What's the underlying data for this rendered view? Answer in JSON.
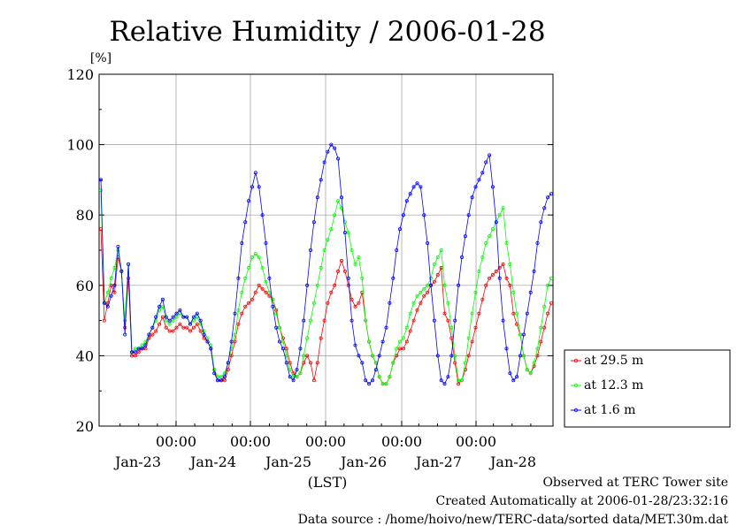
{
  "chart_data": {
    "type": "line",
    "title": "Relative Humidity / 2006-01-28",
    "ylabel": "[%]",
    "xlabel": "(LST)",
    "ylim": [
      20,
      120
    ],
    "yticks": [
      20,
      40,
      60,
      80,
      100,
      120
    ],
    "xlim_days": [
      "2006-01-22 13:00",
      "2006-01-28 23:00"
    ],
    "x_ticks": [
      "00:00",
      "00:00",
      "00:00",
      "00:00",
      "00:00"
    ],
    "x_day_labels": [
      "Jan-23",
      "Jan-24",
      "Jan-25",
      "Jan-26",
      "Jan-27",
      "Jan-28"
    ],
    "grid": true,
    "legend_position": "right",
    "series": [
      {
        "name": "at 29.5 m",
        "color": "#ff0000",
        "values": [
          76,
          50,
          55,
          60,
          58,
          68,
          64,
          48,
          62,
          40,
          40,
          41,
          42,
          42,
          45,
          46,
          47,
          49,
          51,
          48,
          47,
          47,
          48,
          49,
          48,
          48,
          47,
          48,
          49,
          47,
          45,
          44,
          42,
          36,
          33,
          33,
          33,
          36,
          40,
          44,
          49,
          52,
          54,
          55,
          56,
          58,
          60,
          59,
          58,
          57,
          56,
          53,
          48,
          45,
          42,
          38,
          35,
          34,
          35,
          38,
          40,
          38,
          33,
          38,
          45,
          50,
          55,
          58,
          60,
          64,
          67,
          64,
          60,
          56,
          54,
          55,
          58,
          50,
          44,
          40,
          38,
          34,
          32,
          32,
          34,
          38,
          40,
          42,
          42,
          44,
          47,
          50,
          53,
          55,
          57,
          58,
          60,
          61,
          63,
          65,
          52,
          50,
          45,
          38,
          32,
          33,
          36,
          40,
          44,
          48,
          52,
          56,
          60,
          62,
          63,
          64,
          65,
          66,
          62,
          60,
          52,
          49,
          46,
          40,
          36,
          35,
          37,
          40,
          44,
          48,
          52,
          55
        ]
      },
      {
        "name": "at 12.3 m",
        "color": "#00ff00",
        "values": [
          87,
          55,
          58,
          62,
          65,
          70,
          64,
          50,
          66,
          41,
          42,
          42,
          43,
          44,
          46,
          48,
          50,
          53,
          54,
          50,
          49,
          50,
          51,
          52,
          51,
          51,
          49,
          50,
          51,
          49,
          47,
          45,
          43,
          36,
          34,
          34,
          35,
          38,
          42,
          46,
          53,
          58,
          62,
          65,
          68,
          69,
          68,
          65,
          61,
          58,
          56,
          52,
          48,
          44,
          40,
          36,
          34,
          34,
          35,
          40,
          45,
          50,
          55,
          60,
          65,
          70,
          73,
          76,
          80,
          84,
          82,
          78,
          75,
          70,
          66,
          68,
          62,
          50,
          44,
          40,
          38,
          34,
          32,
          32,
          34,
          38,
          42,
          44,
          45,
          48,
          52,
          55,
          57,
          58,
          59,
          60,
          62,
          66,
          68,
          70,
          60,
          55,
          48,
          40,
          33,
          33,
          38,
          45,
          52,
          58,
          64,
          68,
          72,
          74,
          76,
          78,
          80,
          82,
          72,
          66,
          58,
          52,
          46,
          40,
          36,
          35,
          38,
          42,
          48,
          54,
          60,
          62
        ]
      },
      {
        "name": "at 1.6 m",
        "color": "#0000ff",
        "values": [
          90,
          55,
          54,
          57,
          60,
          71,
          64,
          46,
          66,
          41,
          41,
          42,
          42,
          43,
          46,
          48,
          51,
          54,
          56,
          51,
          50,
          51,
          52,
          53,
          51,
          51,
          49,
          51,
          52,
          50,
          46,
          44,
          42,
          35,
          33,
          33,
          34,
          38,
          44,
          52,
          62,
          72,
          78,
          84,
          88,
          92,
          88,
          80,
          72,
          62,
          54,
          48,
          44,
          42,
          38,
          34,
          33,
          36,
          42,
          50,
          60,
          70,
          78,
          85,
          90,
          95,
          98,
          100,
          99,
          96,
          85,
          75,
          62,
          50,
          43,
          40,
          38,
          33,
          32,
          33,
          36,
          40,
          44,
          48,
          55,
          62,
          70,
          76,
          80,
          84,
          86,
          88,
          89,
          88,
          80,
          72,
          60,
          50,
          40,
          33,
          32,
          34,
          40,
          50,
          60,
          68,
          74,
          80,
          85,
          88,
          90,
          92,
          95,
          97,
          88,
          78,
          62,
          50,
          42,
          35,
          33,
          34,
          40,
          46,
          52,
          58,
          64,
          72,
          78,
          82,
          85,
          86
        ]
      }
    ]
  },
  "footer": {
    "line1": "Observed at TERC Tower site",
    "line2": "Created Automatically at 2006-01-28/23:32:16",
    "line3": "Data source : /home/hoivo/new/TERC-data/sorted  data/MET.30m.dat"
  }
}
